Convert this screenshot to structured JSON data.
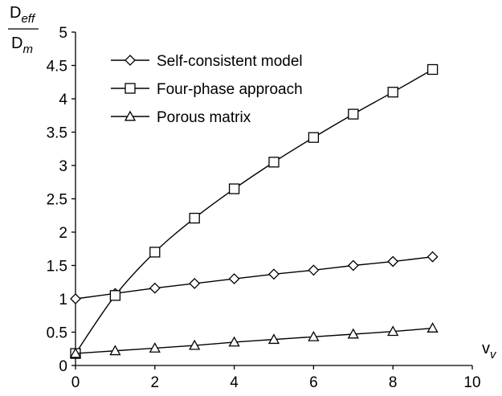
{
  "chart_data": {
    "type": "line",
    "title": "",
    "xlabel": {
      "base": "v",
      "sub": "v"
    },
    "ylabel": {
      "num_base": "D",
      "num_sub": "eff",
      "den_base": "D",
      "den_sub": "m"
    },
    "xlim": [
      0,
      10
    ],
    "ylim": [
      0,
      5
    ],
    "xticks": [
      "0",
      "2",
      "4",
      "6",
      "8",
      "10"
    ],
    "yticks": [
      "0",
      "0.5",
      "1",
      "1.5",
      "2",
      "2.5",
      "3",
      "3.5",
      "4",
      "4.5",
      "5"
    ],
    "grid": false,
    "legend_position": "top-left",
    "x": [
      0,
      1,
      2,
      3,
      4,
      5,
      6,
      7,
      8,
      9
    ],
    "series": [
      {
        "name": "Self-consistent model",
        "marker": "diamond",
        "values": [
          1.0,
          1.08,
          1.16,
          1.23,
          1.3,
          1.37,
          1.43,
          1.5,
          1.56,
          1.63
        ]
      },
      {
        "name": "Four-phase approach",
        "marker": "square",
        "values": [
          0.18,
          1.05,
          1.7,
          2.21,
          2.65,
          3.05,
          3.42,
          3.77,
          4.1,
          4.44
        ]
      },
      {
        "name": "Porous matrix",
        "marker": "triangle",
        "values": [
          0.18,
          0.22,
          0.26,
          0.3,
          0.35,
          0.39,
          0.43,
          0.47,
          0.51,
          0.56
        ]
      }
    ]
  }
}
